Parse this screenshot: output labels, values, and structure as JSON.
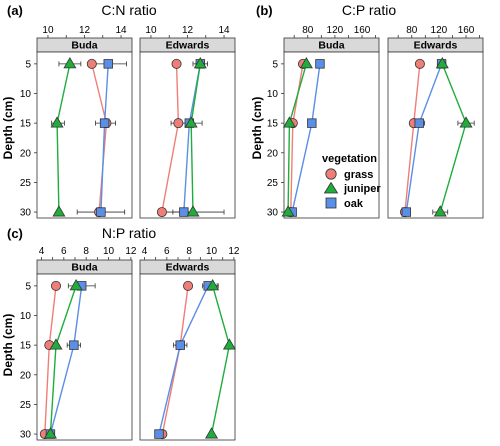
{
  "colors": {
    "grass": "#f07e78",
    "juniper": "#1fad3b",
    "oak": "#5b8ee6"
  },
  "chart_data": [
    {
      "id": "a",
      "type": "line",
      "panel_label": "(a)",
      "title": "C:N ratio",
      "ylabel": "Depth (cm)",
      "y_ticks": [
        5,
        10,
        15,
        20,
        25,
        30
      ],
      "ylim": [
        3,
        31
      ],
      "y_reversed": true,
      "xlim": [
        9.4,
        14.6
      ],
      "x_ticks": [
        10,
        12,
        14
      ],
      "x_ticks_minor": [
        11,
        13
      ],
      "facets": [
        {
          "name": "Buda",
          "series": [
            {
              "name": "grass",
              "points": [
                {
                  "x": 12.4,
                  "y": 5,
                  "lo": null,
                  "hi": null
                },
                {
                  "x": 13.2,
                  "y": 15,
                  "lo": null,
                  "hi": null
                },
                {
                  "x": 12.8,
                  "y": 30,
                  "lo": null,
                  "hi": null
                }
              ]
            },
            {
              "name": "juniper",
              "points": [
                {
                  "x": 11.2,
                  "y": 5,
                  "lo": 10.6,
                  "hi": 11.8
                },
                {
                  "x": 10.5,
                  "y": 15,
                  "lo": 10.2,
                  "hi": 10.9
                },
                {
                  "x": 10.6,
                  "y": 30,
                  "lo": null,
                  "hi": null
                }
              ]
            },
            {
              "name": "oak",
              "points": [
                {
                  "x": 13.3,
                  "y": 5,
                  "lo": 12.3,
                  "hi": 14.3
                },
                {
                  "x": 13.1,
                  "y": 15,
                  "lo": 12.6,
                  "hi": 13.7
                },
                {
                  "x": 12.9,
                  "y": 30,
                  "lo": 11.6,
                  "hi": 14.2
                }
              ]
            }
          ]
        },
        {
          "name": "Edwards",
          "series": [
            {
              "name": "grass",
              "points": [
                {
                  "x": 11.4,
                  "y": 5,
                  "lo": null,
                  "hi": null
                },
                {
                  "x": 11.5,
                  "y": 15,
                  "lo": 11.1,
                  "hi": 11.9
                },
                {
                  "x": 10.6,
                  "y": 30,
                  "lo": null,
                  "hi": null
                }
              ]
            },
            {
              "name": "juniper",
              "points": [
                {
                  "x": 12.7,
                  "y": 5,
                  "lo": null,
                  "hi": null
                },
                {
                  "x": 12.2,
                  "y": 15,
                  "lo": null,
                  "hi": null
                },
                {
                  "x": 12.3,
                  "y": 30,
                  "lo": 10.6,
                  "hi": 14.0
                }
              ]
            },
            {
              "name": "oak",
              "points": [
                {
                  "x": 12.7,
                  "y": 5,
                  "lo": 12.3,
                  "hi": 13.1
                },
                {
                  "x": 12.1,
                  "y": 15,
                  "lo": 11.4,
                  "hi": 12.8
                },
                {
                  "x": 11.8,
                  "y": 30,
                  "lo": 11.2,
                  "hi": 12.4
                }
              ]
            }
          ]
        }
      ]
    },
    {
      "id": "b",
      "type": "line",
      "panel_label": "(b)",
      "title": "C:P ratio",
      "ylabel": "Depth (cm)",
      "y_ticks": [
        5,
        10,
        15,
        20,
        25,
        30
      ],
      "ylim": [
        3,
        31
      ],
      "y_reversed": true,
      "xlim": [
        45,
        185
      ],
      "x_ticks": [
        80,
        120,
        160
      ],
      "x_ticks_minor": [
        60,
        100,
        140,
        180
      ],
      "facets": [
        {
          "name": "Buda",
          "series": [
            {
              "name": "grass",
              "points": [
                {
                  "x": 73,
                  "y": 5,
                  "lo": null,
                  "hi": null
                },
                {
                  "x": 58,
                  "y": 15,
                  "lo": null,
                  "hi": null
                },
                {
                  "x": 55,
                  "y": 30,
                  "lo": null,
                  "hi": null
                }
              ]
            },
            {
              "name": "juniper",
              "points": [
                {
                  "x": 78,
                  "y": 5,
                  "lo": null,
                  "hi": null
                },
                {
                  "x": 53,
                  "y": 15,
                  "lo": null,
                  "hi": null
                },
                {
                  "x": 51,
                  "y": 30,
                  "lo": null,
                  "hi": null
                }
              ]
            },
            {
              "name": "oak",
              "points": [
                {
                  "x": 98,
                  "y": 5,
                  "lo": null,
                  "hi": null
                },
                {
                  "x": 86,
                  "y": 15,
                  "lo": null,
                  "hi": null
                },
                {
                  "x": 57,
                  "y": 30,
                  "lo": null,
                  "hi": null
                }
              ]
            }
          ]
        },
        {
          "name": "Edwards",
          "series": [
            {
              "name": "grass",
              "points": [
                {
                  "x": 92,
                  "y": 5,
                  "lo": null,
                  "hi": null
                },
                {
                  "x": 83,
                  "y": 15,
                  "lo": null,
                  "hi": null
                },
                {
                  "x": 70,
                  "y": 30,
                  "lo": null,
                  "hi": null
                }
              ]
            },
            {
              "name": "juniper",
              "points": [
                {
                  "x": 125,
                  "y": 5,
                  "lo": null,
                  "hi": null
                },
                {
                  "x": 160,
                  "y": 15,
                  "lo": 148,
                  "hi": 172
                },
                {
                  "x": 122,
                  "y": 30,
                  "lo": 111,
                  "hi": 133
                }
              ]
            },
            {
              "name": "oak",
              "points": [
                {
                  "x": 124,
                  "y": 5,
                  "lo": null,
                  "hi": null
                },
                {
                  "x": 91,
                  "y": 15,
                  "lo": 83,
                  "hi": 99
                },
                {
                  "x": 72,
                  "y": 30,
                  "lo": null,
                  "hi": null
                }
              ]
            }
          ]
        }
      ]
    },
    {
      "id": "c",
      "type": "line",
      "panel_label": "(c)",
      "title": "N:P ratio",
      "ylabel": "Depth (cm)",
      "y_ticks": [
        5,
        10,
        15,
        20,
        25,
        30
      ],
      "ylim": [
        3,
        31
      ],
      "y_reversed": true,
      "xlim": [
        3.6,
        12.1
      ],
      "x_ticks": [
        4,
        6,
        8,
        10,
        12
      ],
      "x_ticks_minor": [
        5,
        7,
        9,
        11
      ],
      "facets": [
        {
          "name": "Buda",
          "series": [
            {
              "name": "grass",
              "points": [
                {
                  "x": 5.3,
                  "y": 5,
                  "lo": null,
                  "hi": null
                },
                {
                  "x": 4.7,
                  "y": 15,
                  "lo": null,
                  "hi": null
                },
                {
                  "x": 4.3,
                  "y": 30,
                  "lo": null,
                  "hi": null
                }
              ]
            },
            {
              "name": "juniper",
              "points": [
                {
                  "x": 7.1,
                  "y": 5,
                  "lo": null,
                  "hi": null
                },
                {
                  "x": 5.3,
                  "y": 15,
                  "lo": null,
                  "hi": null
                },
                {
                  "x": 4.8,
                  "y": 30,
                  "lo": null,
                  "hi": null
                }
              ]
            },
            {
              "name": "oak",
              "points": [
                {
                  "x": 7.6,
                  "y": 5,
                  "lo": 6.4,
                  "hi": 8.8
                },
                {
                  "x": 6.9,
                  "y": 15,
                  "lo": 6.3,
                  "hi": 7.5
                },
                {
                  "x": 4.8,
                  "y": 30,
                  "lo": 4.5,
                  "hi": 5.1
                }
              ]
            }
          ]
        },
        {
          "name": "Edwards",
          "series": [
            {
              "name": "grass",
              "points": [
                {
                  "x": 7.9,
                  "y": 5,
                  "lo": null,
                  "hi": null
                },
                {
                  "x": 7.2,
                  "y": 15,
                  "lo": 6.9,
                  "hi": 7.5
                },
                {
                  "x": 5.6,
                  "y": 30,
                  "lo": null,
                  "hi": null
                }
              ]
            },
            {
              "name": "juniper",
              "points": [
                {
                  "x": 10.1,
                  "y": 5,
                  "lo": 9.7,
                  "hi": 10.5
                },
                {
                  "x": 11.6,
                  "y": 15,
                  "lo": null,
                  "hi": null
                },
                {
                  "x": 10.0,
                  "y": 30,
                  "lo": null,
                  "hi": null
                }
              ]
            },
            {
              "name": "oak",
              "points": [
                {
                  "x": 9.7,
                  "y": 5,
                  "lo": 9.2,
                  "hi": 10.6
                },
                {
                  "x": 7.2,
                  "y": 15,
                  "lo": 6.6,
                  "hi": 7.8
                },
                {
                  "x": 5.3,
                  "y": 30,
                  "lo": null,
                  "hi": null
                }
              ]
            }
          ]
        }
      ]
    }
  ],
  "legend": {
    "title": "vegetation",
    "entries": [
      {
        "label": "grass",
        "shape": "circle"
      },
      {
        "label": "juniper",
        "shape": "triangle"
      },
      {
        "label": "oak",
        "shape": "square"
      }
    ]
  }
}
